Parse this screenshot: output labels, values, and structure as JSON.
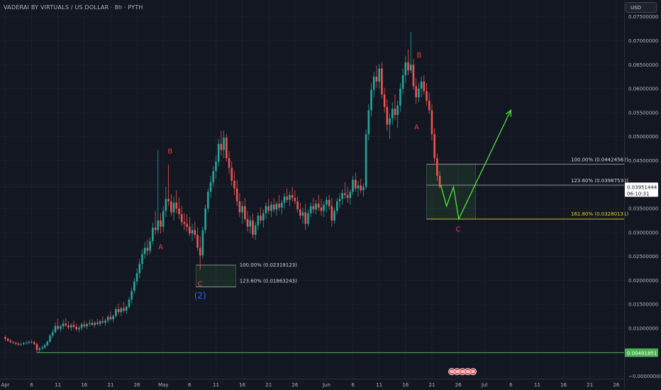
{
  "header": {
    "title": "VADERAI BY VIRTUALS / US DOLLAR · 8h · PYTH",
    "currency_button": "USD"
  },
  "chart_data": {
    "type": "candlestick",
    "title": "VADERAI BY VIRTUALS / US DOLLAR · 8h · PYTH",
    "y_axis": {
      "ticks": [
        "0.07500000",
        "0.07000000",
        "0.06500000",
        "0.06000000",
        "0.05500000",
        "0.05000000",
        "0.04500000",
        "0.04000000",
        "0.03500000",
        "0.03000000",
        "0.02500000",
        "0.02000000",
        "0.01500000",
        "0.01000000",
        "0.00500000",
        "−0.00000000"
      ],
      "tick_values": [
        0.075,
        0.07,
        0.065,
        0.06,
        0.055,
        0.05,
        0.045,
        0.04,
        0.035,
        0.03,
        0.025,
        0.02,
        0.015,
        0.01,
        0.005,
        0
      ],
      "range": [
        -0.0005,
        0.0785
      ]
    },
    "x_axis": {
      "ticks": [
        "Apr",
        "6",
        "11",
        "16",
        "21",
        "26",
        "May",
        "6",
        "11",
        "16",
        "21",
        "26",
        "Jun",
        "6",
        "11",
        "16",
        "21",
        "26",
        "Jul",
        "6",
        "11",
        "16",
        "21",
        "26"
      ],
      "day_index": [
        0,
        5,
        10,
        15,
        20,
        25,
        30,
        35,
        40,
        45,
        50,
        55,
        61,
        66,
        71,
        76,
        81,
        86,
        91,
        96,
        101,
        106,
        111,
        116
      ],
      "range_days": [
        -1,
        117.5
      ]
    },
    "price_labels": {
      "current_price": "0.03951444",
      "countdown": "06:10:31",
      "support_level": "0.00491851",
      "support_value": 0.00491851
    },
    "candles": [
      [
        0,
        0.0082,
        0.0085,
        0.0074,
        0.0078
      ],
      [
        0.5,
        0.0078,
        0.008,
        0.0072,
        0.0074
      ],
      [
        1,
        0.0074,
        0.0078,
        0.0069,
        0.0071
      ],
      [
        1.5,
        0.0071,
        0.0074,
        0.0067,
        0.007
      ],
      [
        2,
        0.007,
        0.0072,
        0.0065,
        0.0068
      ],
      [
        2.5,
        0.0068,
        0.0071,
        0.0064,
        0.0066
      ],
      [
        3,
        0.0066,
        0.007,
        0.0063,
        0.0067
      ],
      [
        3.5,
        0.0067,
        0.0072,
        0.0065,
        0.0069
      ],
      [
        4,
        0.0069,
        0.0074,
        0.0066,
        0.007
      ],
      [
        4.5,
        0.007,
        0.0075,
        0.0067,
        0.0072
      ],
      [
        5,
        0.0072,
        0.0076,
        0.0068,
        0.0071
      ],
      [
        5.5,
        0.0071,
        0.0074,
        0.0065,
        0.0067
      ],
      [
        6,
        0.0067,
        0.007,
        0.0049,
        0.0055
      ],
      [
        6.5,
        0.0055,
        0.0062,
        0.005,
        0.0058
      ],
      [
        7,
        0.0058,
        0.0064,
        0.0054,
        0.006
      ],
      [
        7.5,
        0.006,
        0.0068,
        0.0057,
        0.0065
      ],
      [
        8,
        0.0065,
        0.0075,
        0.0062,
        0.0072
      ],
      [
        8.5,
        0.0072,
        0.0088,
        0.007,
        0.0085
      ],
      [
        9,
        0.0085,
        0.0098,
        0.008,
        0.0092
      ],
      [
        9.5,
        0.0092,
        0.0112,
        0.0089,
        0.0105
      ],
      [
        10,
        0.0105,
        0.012,
        0.0096,
        0.0099
      ],
      [
        10.5,
        0.0099,
        0.0108,
        0.0092,
        0.0104
      ],
      [
        11,
        0.0104,
        0.0118,
        0.0098,
        0.011
      ],
      [
        11.5,
        0.011,
        0.0122,
        0.0103,
        0.0106
      ],
      [
        12,
        0.0106,
        0.0115,
        0.0098,
        0.0102
      ],
      [
        12.5,
        0.0102,
        0.011,
        0.0095,
        0.0107
      ],
      [
        13,
        0.0107,
        0.0116,
        0.01,
        0.0103
      ],
      [
        13.5,
        0.0103,
        0.011,
        0.0094,
        0.0098
      ],
      [
        14,
        0.0098,
        0.0106,
        0.0092,
        0.0101
      ],
      [
        14.5,
        0.0101,
        0.0112,
        0.0096,
        0.0108
      ],
      [
        15,
        0.0108,
        0.0116,
        0.0101,
        0.0104
      ],
      [
        15.5,
        0.0104,
        0.0112,
        0.0098,
        0.0109
      ],
      [
        16,
        0.0109,
        0.0118,
        0.0104,
        0.0111
      ],
      [
        16.5,
        0.0111,
        0.0119,
        0.0105,
        0.0107
      ],
      [
        17,
        0.0107,
        0.0115,
        0.0101,
        0.0112
      ],
      [
        17.5,
        0.0112,
        0.012,
        0.0106,
        0.0109
      ],
      [
        18,
        0.0109,
        0.0118,
        0.0104,
        0.0115
      ],
      [
        18.5,
        0.0115,
        0.0125,
        0.011,
        0.0112
      ],
      [
        19,
        0.0112,
        0.012,
        0.0105,
        0.0116
      ],
      [
        19.5,
        0.0116,
        0.0128,
        0.0111,
        0.0124
      ],
      [
        20,
        0.0124,
        0.0135,
        0.0116,
        0.0119
      ],
      [
        20.5,
        0.0119,
        0.0128,
        0.0113,
        0.0126
      ],
      [
        21,
        0.0126,
        0.0145,
        0.0122,
        0.014
      ],
      [
        21.5,
        0.014,
        0.0152,
        0.0129,
        0.0134
      ],
      [
        22,
        0.0134,
        0.0145,
        0.0126,
        0.0142
      ],
      [
        22.5,
        0.0142,
        0.0155,
        0.0133,
        0.0137
      ],
      [
        23,
        0.0137,
        0.0148,
        0.013,
        0.0145
      ],
      [
        23.5,
        0.0145,
        0.0165,
        0.0141,
        0.016
      ],
      [
        24,
        0.016,
        0.0185,
        0.0152,
        0.0178
      ],
      [
        24.5,
        0.0178,
        0.0205,
        0.0172,
        0.0198
      ],
      [
        25,
        0.0198,
        0.0225,
        0.019,
        0.0215
      ],
      [
        25.5,
        0.0215,
        0.0245,
        0.0205,
        0.0235
      ],
      [
        26,
        0.0235,
        0.0265,
        0.0222,
        0.0255
      ],
      [
        26.5,
        0.0255,
        0.028,
        0.0245,
        0.0268
      ],
      [
        27,
        0.0268,
        0.0285,
        0.0252,
        0.0262
      ],
      [
        27.5,
        0.0262,
        0.029,
        0.0255,
        0.0282
      ],
      [
        28,
        0.0282,
        0.032,
        0.0275,
        0.031
      ],
      [
        28.5,
        0.031,
        0.0345,
        0.0295,
        0.0305
      ],
      [
        29,
        0.0305,
        0.0472,
        0.0298,
        0.0325
      ],
      [
        29.5,
        0.0325,
        0.034,
        0.0298,
        0.0312
      ],
      [
        30,
        0.0312,
        0.0355,
        0.0302,
        0.0345
      ],
      [
        30.5,
        0.0345,
        0.0395,
        0.0332,
        0.037
      ],
      [
        31,
        0.037,
        0.0442,
        0.0355,
        0.0365
      ],
      [
        31.5,
        0.0365,
        0.038,
        0.0335,
        0.0342
      ],
      [
        32,
        0.0342,
        0.0375,
        0.0325,
        0.0362
      ],
      [
        32.5,
        0.0362,
        0.0388,
        0.034,
        0.035
      ],
      [
        33,
        0.035,
        0.0372,
        0.0328,
        0.0338
      ],
      [
        33.5,
        0.0338,
        0.0355,
        0.0315,
        0.0322
      ],
      [
        34,
        0.0322,
        0.034,
        0.0305,
        0.0318
      ],
      [
        34.5,
        0.0318,
        0.0338,
        0.0302,
        0.0312
      ],
      [
        35,
        0.0312,
        0.0332,
        0.0292,
        0.0298
      ],
      [
        35.5,
        0.0298,
        0.0318,
        0.0282,
        0.0305
      ],
      [
        36,
        0.0305,
        0.0322,
        0.0288,
        0.0295
      ],
      [
        36.5,
        0.0295,
        0.031,
        0.0262,
        0.0268
      ],
      [
        37,
        0.0268,
        0.0292,
        0.0222,
        0.0252
      ],
      [
        37.5,
        0.0252,
        0.0312,
        0.0245,
        0.0305
      ],
      [
        38,
        0.0305,
        0.0358,
        0.0298,
        0.035
      ],
      [
        38.5,
        0.035,
        0.0392,
        0.0342,
        0.0385
      ],
      [
        39,
        0.0385,
        0.0418,
        0.0372,
        0.0405
      ],
      [
        39.5,
        0.0405,
        0.0438,
        0.0395,
        0.0428
      ],
      [
        40,
        0.0428,
        0.046,
        0.0412,
        0.0448
      ],
      [
        40.5,
        0.0448,
        0.0495,
        0.0438,
        0.0485
      ],
      [
        41,
        0.0485,
        0.0512,
        0.046,
        0.0472
      ],
      [
        41.5,
        0.0472,
        0.0512,
        0.0455,
        0.0498
      ],
      [
        42,
        0.0498,
        0.0505,
        0.0448,
        0.0455
      ],
      [
        42.5,
        0.0455,
        0.047,
        0.0422,
        0.0435
      ],
      [
        43,
        0.0435,
        0.0448,
        0.0398,
        0.0408
      ],
      [
        43.5,
        0.0408,
        0.0428,
        0.0378,
        0.0392
      ],
      [
        44,
        0.0392,
        0.041,
        0.0355,
        0.0365
      ],
      [
        44.5,
        0.0365,
        0.0382,
        0.0332,
        0.0342
      ],
      [
        45,
        0.0342,
        0.0365,
        0.0318,
        0.0355
      ],
      [
        45.5,
        0.0355,
        0.0372,
        0.0322,
        0.0328
      ],
      [
        46,
        0.0328,
        0.0345,
        0.0302,
        0.0312
      ],
      [
        46.5,
        0.0312,
        0.0335,
        0.0298,
        0.0325
      ],
      [
        47,
        0.0325,
        0.034,
        0.0288,
        0.0295
      ],
      [
        47.5,
        0.0295,
        0.0322,
        0.0285,
        0.0315
      ],
      [
        48,
        0.0315,
        0.0342,
        0.0305,
        0.0335
      ],
      [
        48.5,
        0.0335,
        0.0352,
        0.0318,
        0.0325
      ],
      [
        49,
        0.0325,
        0.0348,
        0.031,
        0.034
      ],
      [
        49.5,
        0.034,
        0.0362,
        0.0328,
        0.0355
      ],
      [
        50,
        0.0355,
        0.037,
        0.0338,
        0.0345
      ],
      [
        50.5,
        0.0345,
        0.0365,
        0.0332,
        0.0358
      ],
      [
        51,
        0.0358,
        0.0372,
        0.0342,
        0.0348
      ],
      [
        51.5,
        0.0348,
        0.0365,
        0.0335,
        0.036
      ],
      [
        52,
        0.036,
        0.0378,
        0.0345,
        0.0352
      ],
      [
        52.5,
        0.0352,
        0.0368,
        0.0338,
        0.0362
      ],
      [
        53,
        0.0362,
        0.0382,
        0.035,
        0.0375
      ],
      [
        53.5,
        0.0375,
        0.0392,
        0.0362,
        0.0368
      ],
      [
        54,
        0.0368,
        0.0385,
        0.0355,
        0.0378
      ],
      [
        54.5,
        0.0378,
        0.0395,
        0.0365,
        0.0372
      ],
      [
        55,
        0.0372,
        0.0388,
        0.0358,
        0.0365
      ],
      [
        55.5,
        0.0365,
        0.0375,
        0.0342,
        0.0348
      ],
      [
        56,
        0.0348,
        0.0362,
        0.0328,
        0.0335
      ],
      [
        56.5,
        0.0335,
        0.0352,
        0.0318,
        0.0342
      ],
      [
        57,
        0.0342,
        0.036,
        0.0305,
        0.0318
      ],
      [
        57.5,
        0.0318,
        0.0348,
        0.0312,
        0.034
      ],
      [
        58,
        0.034,
        0.0362,
        0.0332,
        0.0355
      ],
      [
        58.5,
        0.0355,
        0.0372,
        0.034,
        0.0348
      ],
      [
        59,
        0.0348,
        0.0368,
        0.0338,
        0.036
      ],
      [
        59.5,
        0.036,
        0.0378,
        0.0345,
        0.0352
      ],
      [
        60,
        0.0352,
        0.037,
        0.0335,
        0.0345
      ],
      [
        60.5,
        0.0345,
        0.0365,
        0.0332,
        0.0358
      ],
      [
        61,
        0.0358,
        0.0375,
        0.0342,
        0.0368
      ],
      [
        61.5,
        0.0368,
        0.0378,
        0.0348,
        0.0355
      ],
      [
        62,
        0.0355,
        0.0372,
        0.0312,
        0.0325
      ],
      [
        62.5,
        0.0325,
        0.0352,
        0.0318,
        0.0345
      ],
      [
        63,
        0.0345,
        0.0372,
        0.0338,
        0.0365
      ],
      [
        63.5,
        0.0365,
        0.0382,
        0.0352,
        0.037
      ],
      [
        64,
        0.037,
        0.039,
        0.0358,
        0.0382
      ],
      [
        64.5,
        0.0382,
        0.0405,
        0.037,
        0.0378
      ],
      [
        65,
        0.0378,
        0.0395,
        0.0362,
        0.0372
      ],
      [
        65.5,
        0.0372,
        0.039,
        0.0358,
        0.0385
      ],
      [
        66,
        0.0385,
        0.0418,
        0.0378,
        0.041
      ],
      [
        66.5,
        0.041,
        0.0425,
        0.0385,
        0.0392
      ],
      [
        67,
        0.0392,
        0.0408,
        0.0375,
        0.0398
      ],
      [
        67.5,
        0.0398,
        0.0412,
        0.0382,
        0.0388
      ],
      [
        68,
        0.0388,
        0.0402,
        0.0375,
        0.0395
      ],
      [
        68.5,
        0.0395,
        0.0515,
        0.039,
        0.0505
      ],
      [
        69,
        0.0505,
        0.0568,
        0.0492,
        0.0555
      ],
      [
        69.5,
        0.0555,
        0.0612,
        0.0542,
        0.0598
      ],
      [
        70,
        0.0598,
        0.0635,
        0.0582,
        0.0625
      ],
      [
        70.5,
        0.0625,
        0.0648,
        0.0602,
        0.0615
      ],
      [
        71,
        0.0615,
        0.0652,
        0.06,
        0.0642
      ],
      [
        71.5,
        0.0642,
        0.0655,
        0.058,
        0.0588
      ],
      [
        72,
        0.0588,
        0.0602,
        0.055,
        0.0562
      ],
      [
        72.5,
        0.0562,
        0.0578,
        0.0512,
        0.0525
      ],
      [
        73,
        0.0525,
        0.0548,
        0.0495,
        0.0538
      ],
      [
        73.5,
        0.0538,
        0.0572,
        0.0525,
        0.0558
      ],
      [
        74,
        0.0558,
        0.0588,
        0.0535,
        0.0545
      ],
      [
        74.5,
        0.0545,
        0.0575,
        0.0518,
        0.0565
      ],
      [
        75,
        0.0565,
        0.0612,
        0.0552,
        0.06
      ],
      [
        75.5,
        0.06,
        0.0642,
        0.0588,
        0.0628
      ],
      [
        76,
        0.0628,
        0.0668,
        0.0612,
        0.0655
      ],
      [
        76.5,
        0.0655,
        0.0682,
        0.0628,
        0.0638
      ],
      [
        77,
        0.0638,
        0.0718,
        0.0632,
        0.065
      ],
      [
        77.5,
        0.065,
        0.0662,
        0.0598,
        0.0605
      ],
      [
        78,
        0.0605,
        0.0622,
        0.0568,
        0.0582
      ],
      [
        78.5,
        0.0582,
        0.0612,
        0.0572,
        0.06
      ],
      [
        79,
        0.06,
        0.0625,
        0.0582,
        0.0615
      ],
      [
        79.5,
        0.0615,
        0.0628,
        0.0588,
        0.0595
      ],
      [
        80,
        0.0595,
        0.0612,
        0.0565,
        0.0575
      ],
      [
        80.5,
        0.0575,
        0.0592,
        0.0548,
        0.0555
      ],
      [
        81,
        0.0555,
        0.0568,
        0.0492,
        0.0505
      ],
      [
        81.5,
        0.0505,
        0.0518,
        0.0445,
        0.0455
      ],
      [
        82,
        0.0455,
        0.0465,
        0.0408,
        0.0418
      ],
      [
        82.5,
        0.0418,
        0.0428,
        0.0392,
        0.0395
      ]
    ],
    "annotations": {
      "wave_labels": [
        {
          "text": "A",
          "day": 29.5,
          "price": 0.0265,
          "color": "#f23645"
        },
        {
          "text": "B",
          "day": 31.3,
          "price": 0.0465,
          "color": "#f23645"
        },
        {
          "text": "C",
          "day": 37.0,
          "price": 0.0188,
          "color": "#f23645"
        },
        {
          "text": "(2)",
          "day": 37.0,
          "price": 0.0162,
          "color": "#2962ff"
        },
        {
          "text": "B",
          "day": 78.6,
          "price": 0.0665,
          "color": "#f23645"
        },
        {
          "text": "A",
          "day": 78.1,
          "price": 0.0515,
          "color": "#f23645"
        },
        {
          "text": "C",
          "day": 86.0,
          "price": 0.0302,
          "color": "#f23645"
        }
      ],
      "fib_zones": [
        {
          "x0": 36.2,
          "x1": 43.8,
          "y_top": 0.02319123,
          "y_bottom": 0.01863243,
          "labels": [
            "100.00% (0.02319123)",
            "123.60% (0.01863243)"
          ]
        },
        {
          "x0": 80.0,
          "x1": 89.3,
          "y_top": 0.04424562,
          "y_bottom": 0.03280131,
          "y_mid": 0.0398753,
          "labels": [
            "100.00% (0.04424562)",
            "123.60% (0.03987530)",
            "161.80% (0.03280131)"
          ]
        }
      ],
      "projection_path": [
        [
          82.7,
          0.0398
        ],
        [
          83.8,
          0.0355
        ],
        [
          85.1,
          0.0395
        ],
        [
          86.1,
          0.0328
        ],
        [
          96.0,
          0.0555
        ]
      ],
      "colors": {
        "up": "#26a69a",
        "down": "#ef5350",
        "wave": "#f23645",
        "degree": "#2962ff",
        "projection": "#4ee63b",
        "support": "#4caf50",
        "fib_highlight": "#e3d132",
        "price_tag": "#ffffff"
      }
    }
  }
}
